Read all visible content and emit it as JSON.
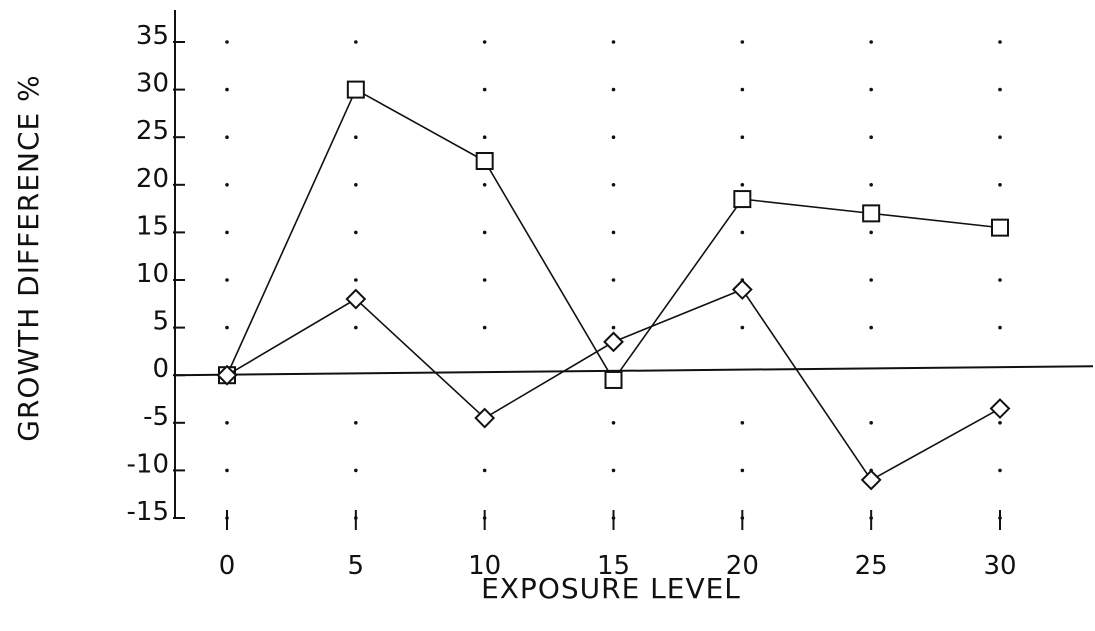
{
  "chart_data": {
    "type": "line",
    "title": "",
    "xlabel": "EXPOSURE LEVEL",
    "ylabel": "GROWTH DIFFERENCE %",
    "x": [
      0,
      5,
      10,
      15,
      20,
      25,
      30
    ],
    "x_ticks": [
      "0",
      "5",
      "10",
      "15",
      "20",
      "25",
      "30"
    ],
    "y_ticks": [
      "35",
      "30",
      "25",
      "20",
      "15",
      "10",
      "5",
      "0",
      "-5",
      "-10",
      "-15"
    ],
    "xlim": [
      0,
      30
    ],
    "ylim": [
      -15,
      35
    ],
    "grid": "dotted",
    "series": [
      {
        "marker": "square",
        "values": [
          0,
          30,
          22.5,
          -0.5,
          18.5,
          17,
          15.5
        ]
      },
      {
        "marker": "diamond",
        "values": [
          0,
          8,
          -4.5,
          3.5,
          9,
          -11,
          -3.5
        ]
      }
    ],
    "colors": {
      "ink": "#111111",
      "background": "#ffffff"
    }
  }
}
